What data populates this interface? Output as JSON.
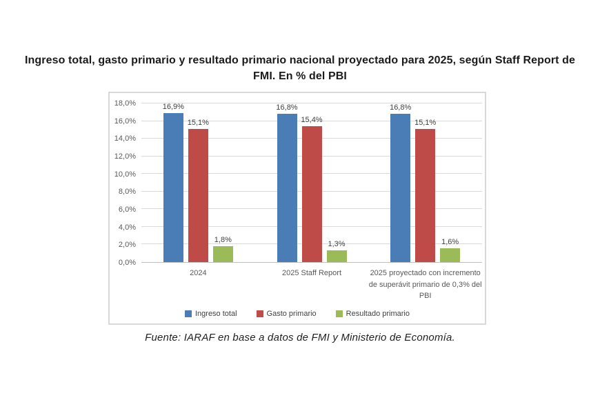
{
  "title": "Ingreso total, gasto primario y resultado primario nacional proyectado para 2025, según Staff Report de FMI. En % del PBI",
  "source": "Fuente: IARAF en base a datos de FMI y Ministerio de Economía.",
  "style": {
    "gridline_color": "#d9d9d9",
    "axis_line_color": "#bfbfbf",
    "frame_border_color": "#d8d8d8",
    "axis_text_color": "#595959",
    "value_text_color": "#3f3f3f"
  },
  "chart_data": {
    "type": "bar",
    "title": "Ingreso total, gasto primario y resultado primario nacional proyectado para 2025, según Staff Report de FMI. En % del PBI",
    "categories": [
      "2024",
      "2025 Staff Report",
      "2025 proyectado con incremento de superávit primario de 0,3% del PBI"
    ],
    "series": [
      {
        "name": "Ingreso total",
        "color": "#4a7cb5",
        "values": [
          16.9,
          16.8,
          16.8
        ],
        "labels": [
          "16,9%",
          "16,8%",
          "16,8%"
        ]
      },
      {
        "name": "Gasto primario",
        "color": "#be4b48",
        "values": [
          15.1,
          15.4,
          15.1
        ],
        "labels": [
          "15,1%",
          "15,4%",
          "15,1%"
        ]
      },
      {
        "name": "Resultado primario",
        "color": "#9bbb59",
        "values": [
          1.8,
          1.3,
          1.6
        ],
        "labels": [
          "1,8%",
          "1,3%",
          "1,6%"
        ]
      }
    ],
    "xlabel": "",
    "ylabel": "",
    "ylim": [
      0,
      18
    ],
    "y_tick_values": [
      18,
      16,
      14,
      12,
      10,
      8,
      6,
      4,
      2,
      0
    ],
    "y_ticks": [
      "18,0%",
      "16,0%",
      "14,0%",
      "12,0%",
      "10,0%",
      "8,0%",
      "6,0%",
      "4,0%",
      "2,0%",
      "0,0%"
    ],
    "grid": true,
    "legend_position": "bottom"
  }
}
